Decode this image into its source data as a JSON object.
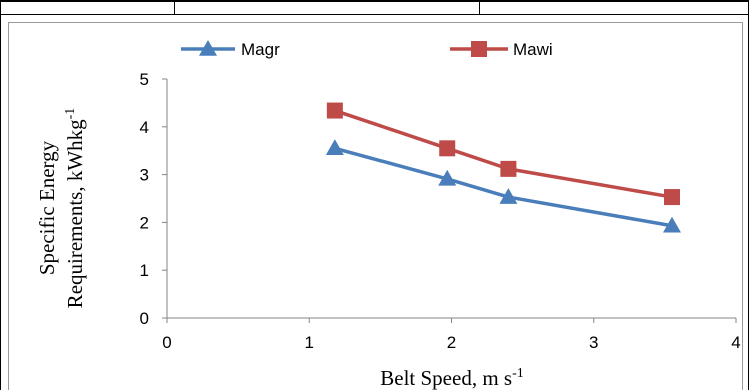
{
  "colors": {
    "magr": "#4a7ebb",
    "mawi": "#be4b48",
    "axis": "#868686"
  },
  "chart_data": {
    "type": "scatter",
    "title": "",
    "xlabel": "Belt Speed, m s",
    "xlabel_sup": "-1",
    "ylabel_line1": "Specific Energy",
    "ylabel_line2": "Requirements,  kWhkg",
    "ylabel_sup": "-1",
    "xlim": [
      0,
      4
    ],
    "ylim": [
      0,
      5
    ],
    "xticks": [
      "0",
      "1",
      "2",
      "3",
      "4"
    ],
    "yticks": [
      "0",
      "1",
      "2",
      "3",
      "4",
      "5"
    ],
    "grid": false,
    "legend_position": "top",
    "series": [
      {
        "name": "Magr",
        "marker": "triangle",
        "x": [
          1.18,
          1.97,
          2.4,
          3.55
        ],
        "y": [
          3.55,
          2.91,
          2.53,
          1.93
        ]
      },
      {
        "name": "Mawi",
        "marker": "square",
        "x": [
          1.18,
          1.97,
          2.4,
          3.55
        ],
        "y": [
          4.34,
          3.55,
          3.12,
          2.53
        ]
      }
    ]
  }
}
